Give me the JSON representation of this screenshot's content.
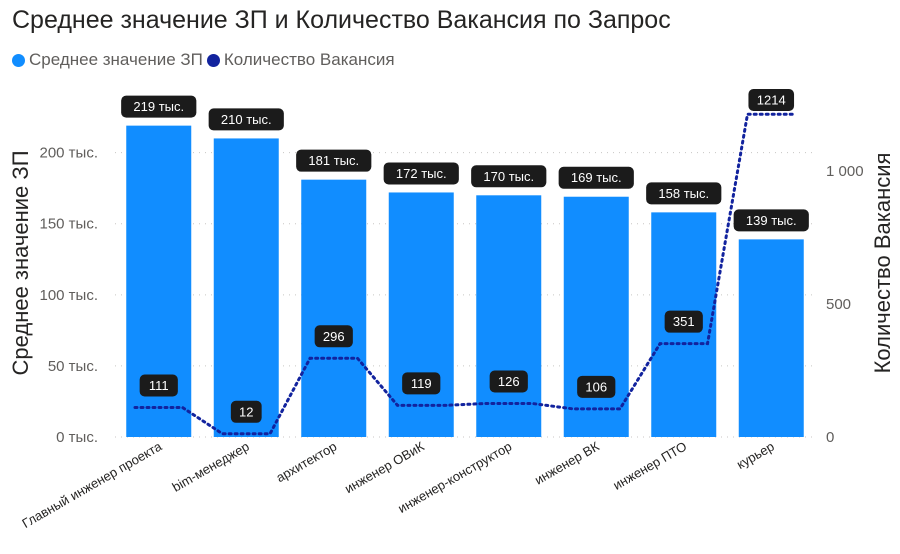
{
  "title": "Среднее значение ЗП и Количество Вакансия по Запрос",
  "legend": [
    {
      "label": "Среднее значение ЗП",
      "color": "#118DFF"
    },
    {
      "label": "Количество Вакансия",
      "color": "#12239E"
    }
  ],
  "colors": {
    "bar": "#118DFF",
    "line": "#12239E",
    "label_bg": "#1b1b1b",
    "grid": "#c8c6c4"
  },
  "chart_data": {
    "type": "bar",
    "title": "Среднее значение ЗП и Количество Вакансия по Запрос",
    "categories": [
      "Главный инженер проекта",
      "bim-менеджер",
      "архитектор",
      "инженер ОВиК",
      "инженер-конструктор",
      "инженер ВК",
      "инженер ПТО",
      "курьер"
    ],
    "series": [
      {
        "name": "Среднее значение ЗП",
        "type": "bar",
        "axis": "left",
        "values": [
          219000,
          210000,
          181000,
          172000,
          170000,
          169000,
          158000,
          139000
        ],
        "labels": [
          "219 тыс.",
          "210 тыс.",
          "181 тыс.",
          "172 тыс.",
          "170 тыс.",
          "169 тыс.",
          "158 тыс.",
          "139 тыс."
        ]
      },
      {
        "name": "Количество Вакансия",
        "type": "line",
        "style": "dotted-step",
        "axis": "right",
        "values": [
          111,
          12,
          296,
          119,
          126,
          106,
          351,
          1214
        ],
        "labels": [
          "111",
          "12",
          "296",
          "119",
          "126",
          "106",
          "351",
          "1214"
        ]
      }
    ],
    "ylabel": "Среднее значение ЗП",
    "y2label": "Количество Вакансия",
    "ylim": [
      0,
      230000
    ],
    "y2lim": [
      0,
      1230
    ],
    "yticks": [
      0,
      50000,
      100000,
      150000,
      200000
    ],
    "ytick_labels": [
      "0 тыс.",
      "50 тыс.",
      "100 тыс.",
      "150 тыс.",
      "200 тыс."
    ],
    "y2ticks": [
      0,
      500,
      1000
    ],
    "y2tick_labels": [
      "0",
      "500",
      "1 000"
    ],
    "grid": true,
    "legend_position": "top-left"
  }
}
